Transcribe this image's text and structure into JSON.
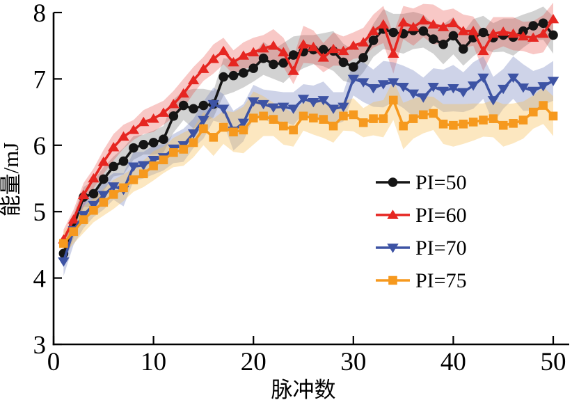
{
  "figure": {
    "background": "#ffffff",
    "axis_color": "#000000"
  },
  "chart_data": {
    "type": "line",
    "title": "",
    "xlabel": "脉冲数",
    "ylabel": "能量/mJ",
    "xlim": [
      0,
      51.6
    ],
    "ylim": [
      3,
      8
    ],
    "xticks": [
      0,
      10,
      20,
      30,
      40,
      50
    ],
    "yticks": [
      3,
      4,
      5,
      6,
      7,
      8
    ],
    "grid": false,
    "legend_position": "center-right",
    "x": [
      1,
      2,
      3,
      4,
      5,
      6,
      7,
      8,
      9,
      10,
      11,
      12,
      13,
      14,
      15,
      16,
      17,
      18,
      19,
      20,
      21,
      22,
      23,
      24,
      25,
      26,
      27,
      28,
      29,
      30,
      31,
      32,
      33,
      34,
      35,
      36,
      37,
      38,
      39,
      40,
      41,
      42,
      43,
      44,
      45,
      46,
      47,
      48,
      49,
      50
    ],
    "series": [
      {
        "name": "PI=50",
        "marker": "circle",
        "color": "#151515",
        "band_color": "rgba(125,125,125,0.35)",
        "values": [
          4.37,
          4.78,
          5.22,
          5.27,
          5.49,
          5.68,
          5.76,
          5.96,
          6.01,
          6.04,
          6.09,
          6.44,
          6.6,
          6.55,
          6.6,
          6.62,
          7.03,
          7.05,
          7.09,
          7.16,
          7.31,
          7.22,
          7.24,
          7.36,
          7.41,
          7.44,
          7.44,
          7.42,
          7.25,
          7.18,
          7.32,
          7.58,
          7.75,
          7.7,
          7.68,
          7.73,
          7.72,
          7.6,
          7.52,
          7.65,
          7.45,
          7.62,
          7.7,
          7.62,
          7.66,
          7.63,
          7.72,
          7.8,
          7.84,
          7.66
        ],
        "band_halfwidth": [
          0.18,
          0.18,
          0.15,
          0.2,
          0.18,
          0.15,
          0.2,
          0.18,
          0.15,
          0.18,
          0.2,
          0.25,
          0.22,
          0.3,
          0.25,
          0.2,
          0.28,
          0.25,
          0.22,
          0.2,
          0.25,
          0.22,
          0.3,
          0.28,
          0.25,
          0.22,
          0.25,
          0.3,
          0.28,
          0.25,
          0.22,
          0.25,
          0.3,
          0.28,
          0.3,
          0.28,
          0.25,
          0.22,
          0.3,
          0.28,
          0.25,
          0.28,
          0.25,
          0.22,
          0.25,
          0.28,
          0.25,
          0.22,
          0.25,
          0.28
        ]
      },
      {
        "name": "PI=60",
        "marker": "triangle-up",
        "color": "#e62621",
        "band_color": "rgba(233,72,66,0.30)",
        "values": [
          4.58,
          4.88,
          5.25,
          5.5,
          5.75,
          5.97,
          6.13,
          6.23,
          6.35,
          6.4,
          6.49,
          6.62,
          6.78,
          6.98,
          7.15,
          7.3,
          7.42,
          7.25,
          7.35,
          7.4,
          7.46,
          7.5,
          7.4,
          7.12,
          7.52,
          7.48,
          7.32,
          7.45,
          7.42,
          7.5,
          7.55,
          7.72,
          7.82,
          7.38,
          7.85,
          7.78,
          7.88,
          7.82,
          7.78,
          7.84,
          7.72,
          7.72,
          7.42,
          7.68,
          7.71,
          7.68,
          7.64,
          7.62,
          7.68,
          7.9
        ],
        "band_halfwidth": [
          0.15,
          0.15,
          0.18,
          0.15,
          0.18,
          0.2,
          0.18,
          0.15,
          0.18,
          0.2,
          0.18,
          0.2,
          0.22,
          0.2,
          0.18,
          0.22,
          0.2,
          0.18,
          0.2,
          0.22,
          0.2,
          0.25,
          0.22,
          0.2,
          0.28,
          0.25,
          0.22,
          0.25,
          0.22,
          0.2,
          0.22,
          0.25,
          0.28,
          0.3,
          0.25,
          0.28,
          0.25,
          0.3,
          0.25,
          0.22,
          0.25,
          0.22,
          0.3,
          0.25,
          0.22,
          0.25,
          0.22,
          0.25,
          0.28,
          0.25
        ]
      },
      {
        "name": "PI=70",
        "marker": "triangle-down",
        "color": "#3d53a4",
        "band_color": "rgba(115,128,190,0.35)",
        "values": [
          4.25,
          4.72,
          4.95,
          5.1,
          5.25,
          5.38,
          5.33,
          5.68,
          5.7,
          5.78,
          5.82,
          5.95,
          6.0,
          6.18,
          6.38,
          6.62,
          6.55,
          6.22,
          6.34,
          6.66,
          6.62,
          6.57,
          6.58,
          6.55,
          6.7,
          6.65,
          6.68,
          6.55,
          6.58,
          7.0,
          6.95,
          6.86,
          6.92,
          6.95,
          6.88,
          6.78,
          6.72,
          6.88,
          6.82,
          6.86,
          6.8,
          6.9,
          7.02,
          6.68,
          6.85,
          7.02,
          6.87,
          6.82,
          6.89,
          6.97
        ],
        "band_halfwidth": [
          0.22,
          0.22,
          0.2,
          0.18,
          0.22,
          0.2,
          0.25,
          0.22,
          0.2,
          0.22,
          0.2,
          0.22,
          0.25,
          0.22,
          0.28,
          0.25,
          0.22,
          0.3,
          0.28,
          0.25,
          0.22,
          0.25,
          0.22,
          0.25,
          0.22,
          0.25,
          0.28,
          0.25,
          0.22,
          0.25,
          0.3,
          0.28,
          0.35,
          0.3,
          0.32,
          0.35,
          0.3,
          0.28,
          0.32,
          0.35,
          0.3,
          0.35,
          0.32,
          0.35,
          0.3,
          0.32,
          0.35,
          0.3,
          0.28,
          0.3
        ]
      },
      {
        "name": "PI=75",
        "marker": "square",
        "color": "#f6991e",
        "band_color": "rgba(248,193,90,0.38)",
        "values": [
          4.52,
          4.7,
          4.88,
          5.02,
          5.14,
          5.26,
          5.36,
          5.48,
          5.57,
          5.69,
          5.78,
          5.89,
          5.94,
          6.04,
          6.25,
          6.12,
          6.27,
          6.2,
          6.23,
          6.41,
          6.44,
          6.39,
          6.29,
          6.23,
          6.44,
          6.41,
          6.39,
          6.29,
          6.44,
          6.46,
          6.34,
          6.4,
          6.4,
          6.68,
          6.29,
          6.4,
          6.46,
          6.48,
          6.32,
          6.3,
          6.32,
          6.35,
          6.38,
          6.4,
          6.3,
          6.33,
          6.38,
          6.5,
          6.6,
          6.44
        ],
        "band_halfwidth": [
          0.18,
          0.18,
          0.2,
          0.18,
          0.2,
          0.22,
          0.2,
          0.18,
          0.2,
          0.22,
          0.2,
          0.22,
          0.25,
          0.22,
          0.25,
          0.28,
          0.25,
          0.3,
          0.35,
          0.4,
          0.3,
          0.25,
          0.28,
          0.25,
          0.22,
          0.25,
          0.28,
          0.25,
          0.22,
          0.25,
          0.22,
          0.25,
          0.28,
          0.3,
          0.35,
          0.3,
          0.28,
          0.25,
          0.3,
          0.32,
          0.3,
          0.28,
          0.25,
          0.28,
          0.32,
          0.3,
          0.28,
          0.25,
          0.28,
          0.3
        ]
      }
    ]
  }
}
